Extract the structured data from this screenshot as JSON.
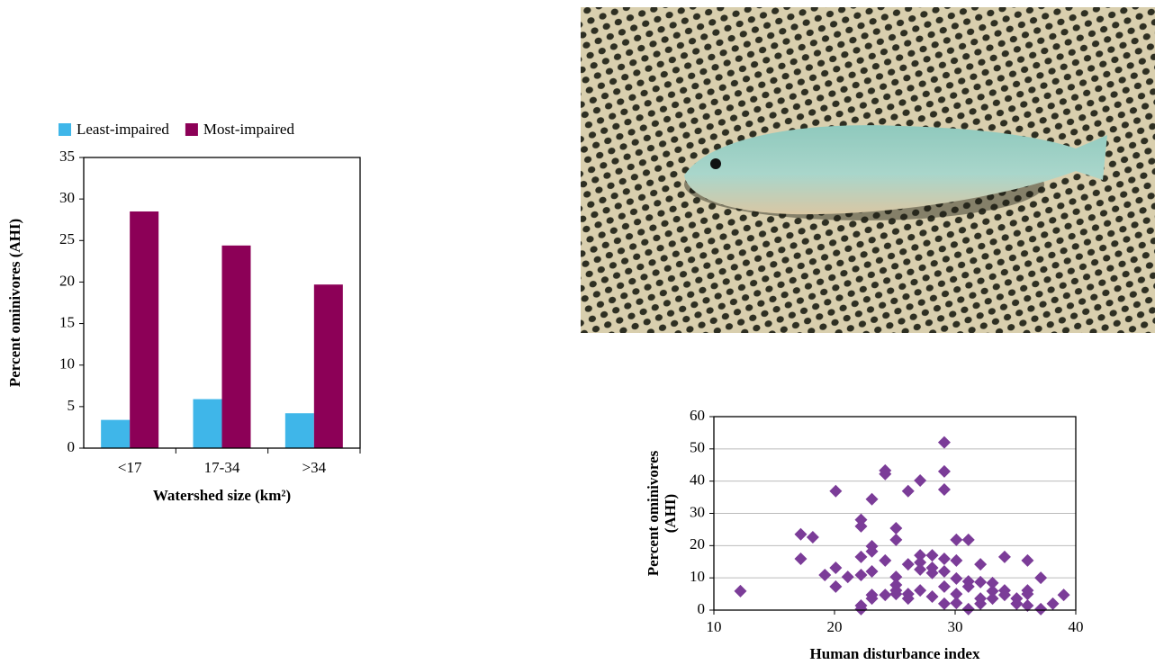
{
  "chart_data": [
    {
      "type": "bar",
      "categories": [
        "<17",
        "17-34",
        ">34"
      ],
      "series": [
        {
          "name": "Least-impaired",
          "color": "#3fb6e9",
          "values": [
            3.4,
            5.9,
            4.2
          ]
        },
        {
          "name": "Most-impaired",
          "color": "#8c0057",
          "values": [
            28.5,
            24.4,
            19.7
          ]
        }
      ],
      "xlabel": "Watershed size (km²)",
      "ylabel": [
        "Percent ominivores (AHI)"
      ],
      "ylim": [
        0,
        35
      ],
      "yticks": [
        0,
        5,
        10,
        15,
        20,
        25,
        30,
        35
      ],
      "grid": false,
      "legend": "top"
    },
    {
      "type": "scatter",
      "color": "#7b3c98",
      "x": [
        12.2,
        17.2,
        18.2,
        17.2,
        19.2,
        20.1,
        20.1,
        20.1,
        21.1,
        22.2,
        22.2,
        22.2,
        22.2,
        22.2,
        22.2,
        23.1,
        23.1,
        23.1,
        23.1,
        23.1,
        23.1,
        24.2,
        24.2,
        24.2,
        24.2,
        25.1,
        25.1,
        25.1,
        25.1,
        25.1,
        25.1,
        26.1,
        26.1,
        26.1,
        26.1,
        27.1,
        27.1,
        27.1,
        27.1,
        27.1,
        28.1,
        28.1,
        28.1,
        28.1,
        29.1,
        29.1,
        29.1,
        29.1,
        29.1,
        29.1,
        29.1,
        30.1,
        30.1,
        30.1,
        30.1,
        30.1,
        31.1,
        31.1,
        31.1,
        31.1,
        32.1,
        32.1,
        32.1,
        32.1,
        33.1,
        33.1,
        33.1,
        34.1,
        34.1,
        34.1,
        35.1,
        35.1,
        36,
        36,
        36,
        36,
        37.1,
        37.1,
        38.1,
        39
      ],
      "values": [
        5.9,
        23.5,
        22.6,
        15.9,
        10.9,
        36.9,
        13.1,
        7.3,
        10.3,
        28,
        26,
        16.5,
        10.9,
        1.4,
        0.3,
        34.4,
        19.8,
        18.2,
        12,
        4.7,
        3.6,
        43.3,
        42.2,
        15.4,
        4.7,
        25.4,
        21.8,
        10.3,
        7.8,
        6.1,
        5,
        36.9,
        14.2,
        5,
        3.6,
        40.2,
        17,
        14.8,
        12.6,
        6.1,
        17,
        13.1,
        11.5,
        4.2,
        52,
        43,
        37.4,
        15.9,
        12,
        7.3,
        2,
        21.8,
        15.4,
        9.8,
        5,
        2.2,
        21.8,
        8.9,
        7.3,
        0.3,
        14.2,
        8.7,
        3.6,
        2,
        8.4,
        5.9,
        3.6,
        16.5,
        6.1,
        4.7,
        3.6,
        2,
        15.4,
        6.1,
        5,
        1.4,
        10,
        0.3,
        2,
        4.7
      ],
      "xlabel": "Human disturbance index",
      "ylabel": [
        "Percent ominivores",
        "(AHI)"
      ],
      "xlim": [
        10,
        40
      ],
      "xticks": [
        10,
        20,
        30,
        40
      ],
      "ylim": [
        0,
        60
      ],
      "yticks": [
        0,
        10,
        20,
        30,
        40,
        50,
        60
      ],
      "grid": true
    }
  ]
}
